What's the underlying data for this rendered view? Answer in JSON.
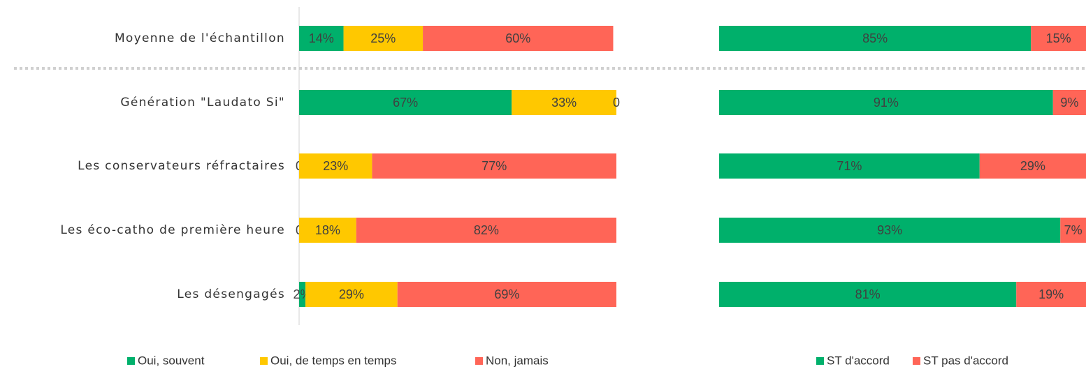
{
  "chart_data": [
    {
      "type": "stacked-bar",
      "categories": [
        "Moyenne de l'échantillon",
        "Génération \"Laudato Si\"",
        "Les conservateurs réfractaires",
        "Les éco-catho de première heure",
        "Les désengagés"
      ],
      "xlim": [
        0,
        100
      ],
      "series": [
        {
          "name": "Oui, souvent",
          "color": "#00b06b",
          "values": [
            14,
            67,
            0,
            0,
            2
          ],
          "value_labels": [
            "14%",
            "67%",
            "0",
            "0",
            "2%"
          ]
        },
        {
          "name": "Oui, de temps en temps",
          "color": "#ffc800",
          "values": [
            25,
            33,
            23,
            18,
            29
          ],
          "value_labels": [
            "25%",
            "33%",
            "23%",
            "18%",
            "29%"
          ]
        },
        {
          "name": "Non, jamais",
          "color": "#ff6557",
          "values": [
            60,
            0,
            77,
            82,
            69
          ],
          "value_labels": [
            "60%",
            "0",
            "77%",
            "82%",
            "69%"
          ]
        }
      ]
    },
    {
      "type": "stacked-bar",
      "xlim": [
        0,
        100
      ],
      "series": [
        {
          "name": "ST d'accord",
          "color": "#00b06b",
          "values": [
            85,
            91,
            71,
            93,
            81
          ],
          "value_labels": [
            "85%",
            "91%",
            "71%",
            "93%",
            "81%"
          ]
        },
        {
          "name": "ST pas d'accord",
          "color": "#ff6557",
          "values": [
            15,
            9,
            29,
            7,
            19
          ],
          "value_labels": [
            "15%",
            "9%",
            "29%",
            "7%",
            "19%"
          ]
        }
      ]
    }
  ]
}
